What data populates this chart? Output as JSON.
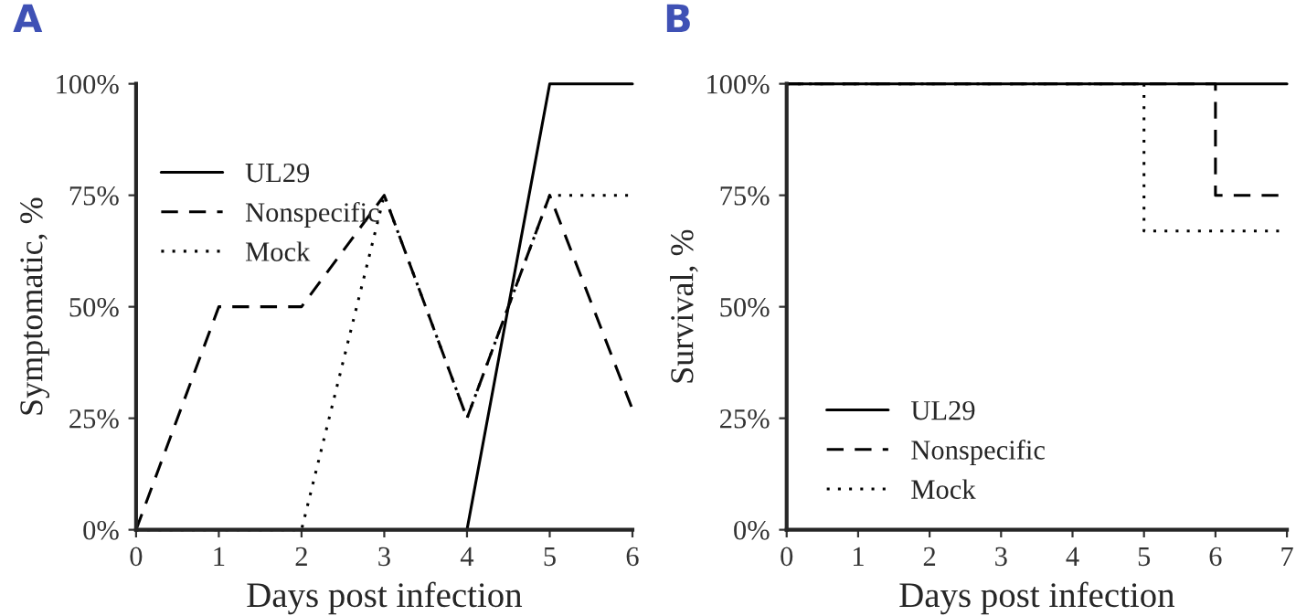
{
  "chart_data": [
    {
      "type": "line",
      "title": "A",
      "xlabel": "Days post infection",
      "ylabel": "Symptomatic, %",
      "x": [
        0,
        1,
        2,
        3,
        4,
        5,
        6
      ],
      "series": [
        {
          "name": "UL29",
          "color": "#000000",
          "line_style": "solid",
          "values": [
            0,
            0,
            0,
            0,
            0,
            100,
            100
          ]
        },
        {
          "name": "Nonspecific",
          "color": "#000000",
          "line_style": "dashed",
          "values": [
            0,
            50,
            50,
            75,
            25,
            75,
            27
          ]
        },
        {
          "name": "Mock",
          "color": "#000000",
          "line_style": "dotted",
          "values": [
            0,
            0,
            0,
            75,
            25,
            75,
            75
          ]
        }
      ],
      "xlim": [
        0,
        6
      ],
      "xticks": [
        0,
        1,
        2,
        3,
        4,
        5,
        6
      ],
      "ylim": [
        0,
        100
      ],
      "yticks": [
        {
          "value": 0,
          "label": "0%"
        },
        {
          "value": 25,
          "label": "25%"
        },
        {
          "value": 50,
          "label": "50%"
        },
        {
          "value": 75,
          "label": "75%"
        },
        {
          "value": 100,
          "label": "100%"
        }
      ],
      "grid": false,
      "legend": "top left",
      "marker": "none"
    },
    {
      "type": "step",
      "title": "B",
      "xlabel": "Days post infection",
      "ylabel": "Survival, %",
      "x": [
        0,
        1,
        2,
        3,
        4,
        5,
        6,
        7
      ],
      "series": [
        {
          "name": "UL29",
          "color": "#000000",
          "line_style": "solid",
          "values": [
            100,
            100,
            100,
            100,
            100,
            100,
            100,
            100
          ]
        },
        {
          "name": "Nonspecific",
          "color": "#000000",
          "line_style": "dashed",
          "values": [
            100,
            100,
            100,
            100,
            100,
            100,
            75,
            75
          ]
        },
        {
          "name": "Mock",
          "color": "#000000",
          "line_style": "dotted",
          "values": [
            100,
            100,
            100,
            100,
            100,
            67,
            67,
            67
          ]
        }
      ],
      "xlim": [
        0,
        7
      ],
      "xticks": [
        0,
        1,
        2,
        3,
        4,
        5,
        6,
        7
      ],
      "ylim": [
        0,
        100
      ],
      "yticks": [
        {
          "value": 0,
          "label": "0%"
        },
        {
          "value": 25,
          "label": "25%"
        },
        {
          "value": 50,
          "label": "50%"
        },
        {
          "value": 75,
          "label": "75%"
        },
        {
          "value": 100,
          "label": "100%"
        }
      ],
      "grid": false,
      "legend": "bottom left",
      "marker": "none"
    }
  ]
}
